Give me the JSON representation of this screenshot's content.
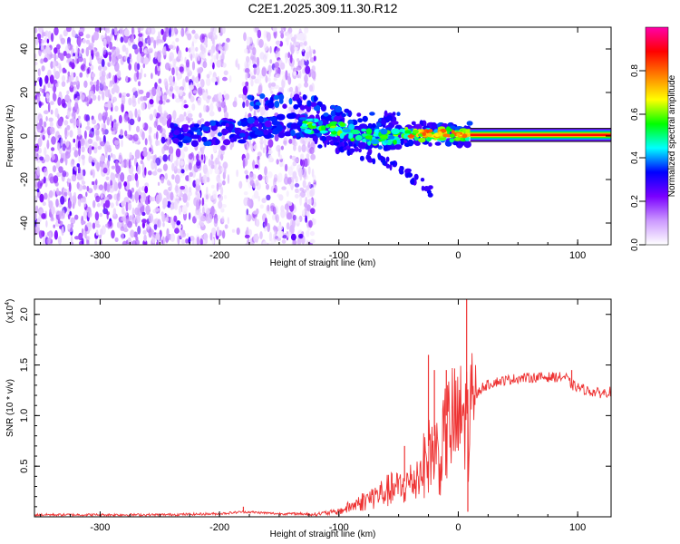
{
  "title": "C2E1.2025.309.11.30.R12",
  "chart_data": [
    {
      "type": "heatmap",
      "name": "spectrogram",
      "xlabel": "Height of straight line (km)",
      "ylabel": "Frequency (Hz)",
      "xlim": [
        -355,
        128
      ],
      "ylim": [
        -50,
        50
      ],
      "xticks": [
        -300,
        -200,
        -100,
        0,
        100
      ],
      "xtick_labels": [
        "-300",
        "-200",
        "-100",
        "0",
        "100"
      ],
      "yticks": [
        -40,
        -20,
        0,
        20,
        40
      ],
      "ytick_labels": [
        "-40",
        "-20",
        "0",
        "20",
        "40"
      ],
      "colorbar": {
        "label": "Normalized spectral amplitude",
        "range": [
          0,
          1
        ],
        "ticks": [
          0.0,
          0.2,
          0.4,
          0.6,
          0.8
        ],
        "tick_labels": [
          "0.0",
          "0.2",
          "0.4",
          "0.6",
          "0.8"
        ],
        "colors": [
          "#ffffff",
          "#cc99ff",
          "#7a00ff",
          "#0000ff",
          "#00ffff",
          "#00ff00",
          "#ffff00",
          "#ff8000",
          "#ff0000",
          "#ff00aa"
        ]
      },
      "features": {
        "noise_region_x": [
          -355,
          -120
        ],
        "noise_gap_x": [
          -195,
          -180
        ],
        "signal_curve": [
          {
            "x": -240,
            "y": 0
          },
          {
            "x": -200,
            "y": 2
          },
          {
            "x": -160,
            "y": 3
          },
          {
            "x": -130,
            "y": 5
          },
          {
            "x": -100,
            "y": 3
          },
          {
            "x": -80,
            "y": 0
          },
          {
            "x": -60,
            "y": -1
          },
          {
            "x": -40,
            "y": 1
          },
          {
            "x": -20,
            "y": 1
          },
          {
            "x": 0,
            "y": 1
          },
          {
            "x": 10,
            "y": 1
          }
        ],
        "upper_branch": [
          {
            "x": -175,
            "y": 15
          },
          {
            "x": -150,
            "y": 16
          },
          {
            "x": -120,
            "y": 15
          },
          {
            "x": -100,
            "y": 10
          },
          {
            "x": -80,
            "y": 7
          },
          {
            "x": -50,
            "y": 8
          }
        ],
        "lower_branch": [
          {
            "x": -120,
            "y": -2
          },
          {
            "x": -90,
            "y": -6
          },
          {
            "x": -60,
            "y": -12
          },
          {
            "x": -40,
            "y": -18
          },
          {
            "x": -30,
            "y": -22
          },
          {
            "x": -22,
            "y": -26
          }
        ],
        "steady_band": {
          "x_start": 10,
          "x_end": 128,
          "y_center": 0.5,
          "half_width": 3
        }
      }
    },
    {
      "type": "line",
      "name": "snr",
      "xlabel": "Height of straight line (km)",
      "ylabel": "SNR (10 * v/v)",
      "y_multiplier_label": "(x10",
      "y_multiplier_exp": "4",
      "y_multiplier_close": ")",
      "xlim": [
        -355,
        128
      ],
      "ylim": [
        0,
        2.15
      ],
      "xticks": [
        -300,
        -200,
        -100,
        0,
        100
      ],
      "xtick_labels": [
        "-300",
        "-200",
        "-100",
        "0",
        "100"
      ],
      "yticks": [
        0.5,
        1.0,
        1.5,
        2.0
      ],
      "ytick_labels": [
        "0.5",
        "1.0",
        "1.5",
        "2.0"
      ],
      "color": "#ee3333",
      "series": [
        {
          "name": "SNR",
          "x": [
            -355,
            -250,
            -200,
            -180,
            -150,
            -120,
            -100,
            -80,
            -60,
            -45,
            -35,
            -25,
            -20,
            -15,
            -10,
            -5,
            0,
            5,
            8,
            10,
            15,
            20,
            30,
            40,
            50,
            70,
            90,
            95,
            100,
            110,
            120,
            128
          ],
          "y": [
            0.02,
            0.02,
            0.03,
            0.05,
            0.03,
            0.03,
            0.06,
            0.18,
            0.3,
            0.35,
            0.45,
            0.7,
            0.8,
            0.65,
            1.0,
            1.1,
            1.05,
            1.2,
            1.1,
            1.15,
            1.2,
            1.28,
            1.33,
            1.35,
            1.37,
            1.38,
            1.38,
            1.3,
            1.28,
            1.24,
            1.22,
            1.24
          ]
        }
      ],
      "spikes": [
        {
          "x": 7,
          "y": 2.15
        },
        {
          "x": 8,
          "y": 0.05
        },
        {
          "x": -20,
          "y": 1.45
        },
        {
          "x": -25,
          "y": 1.6
        },
        {
          "x": -10,
          "y": 1.45
        },
        {
          "x": -45,
          "y": 0.7
        },
        {
          "x": -180,
          "y": 0.1
        },
        {
          "x": 95,
          "y": 1.45
        }
      ]
    }
  ]
}
